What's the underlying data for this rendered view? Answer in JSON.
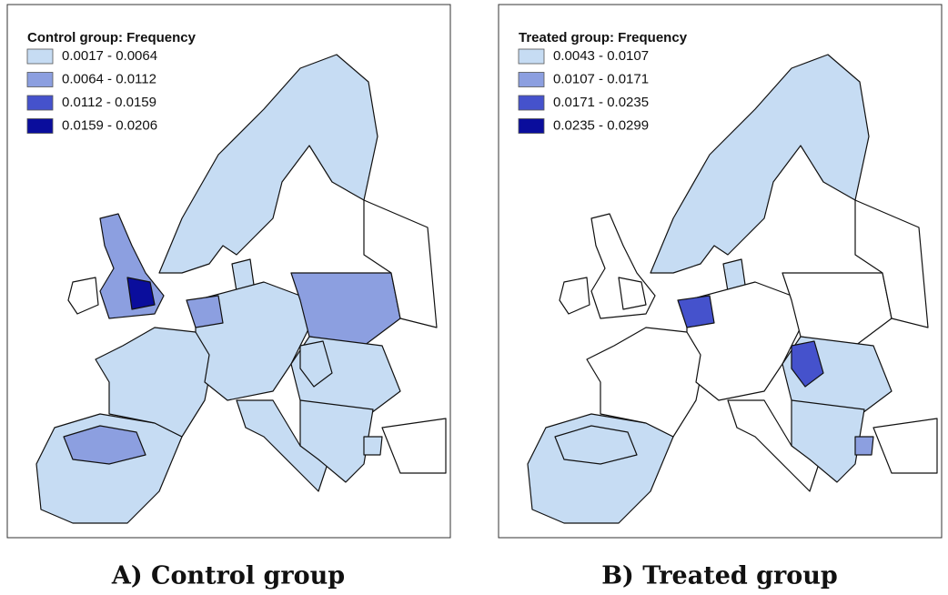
{
  "panels": [
    {
      "legend_title": "Control group: Frequency",
      "legend": [
        {
          "label": "0.0017 - 0.0064",
          "color": "#c6dcf3"
        },
        {
          "label": "0.0064 - 0.0112",
          "color": "#8c9fe0"
        },
        {
          "label": "0.0112 - 0.0159",
          "color": "#4552cc"
        },
        {
          "label": "0.0159 - 0.0206",
          "color": "#0a0d9c"
        }
      ],
      "caption": "A) Control group"
    },
    {
      "legend_title": "Treated group: Frequency",
      "legend": [
        {
          "label": "0.0043 - 0.0107",
          "color": "#c6dcf3"
        },
        {
          "label": "0.0107 - 0.0171",
          "color": "#8c9fe0"
        },
        {
          "label": "0.0171 - 0.0235",
          "color": "#4552cc"
        },
        {
          "label": "0.0235 - 0.0299",
          "color": "#0a0d9c"
        }
      ],
      "caption": "B) Treated group"
    }
  ]
}
